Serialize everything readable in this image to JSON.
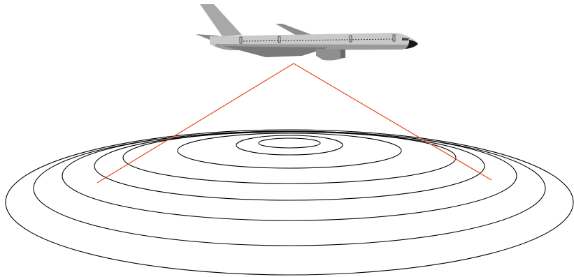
{
  "colors": {
    "background": "#ffffff",
    "rings": "#000000",
    "beam": "#e8491f",
    "fuselage": "#c9c9c9",
    "fuselage_shadow": "#9a9a9a",
    "tail": "#a8a8a8",
    "wing": "#7a7a7a",
    "engine": "#8f8f8f",
    "window_line": "#333333",
    "nose_cone": "#1a1a1a"
  },
  "icons": {
    "aircraft": "airplane-icon"
  },
  "rings": {
    "count": 8
  },
  "beam": {
    "lines": 2
  }
}
